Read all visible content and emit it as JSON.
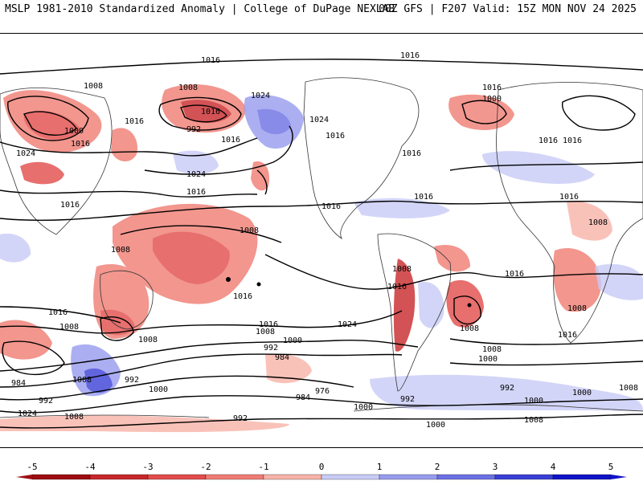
{
  "header": {
    "left_title": "MSLP 1981-2010 Standardized Anomaly | College of DuPage NEXLAB",
    "right_title": "00Z GFS | F207 Valid: 15Z MON NOV 24 2025"
  },
  "map": {
    "negative_color": "#e8524a",
    "positive_color": "#6a6ae8",
    "isobar_labels": [
      "1016",
      "1008",
      "1008",
      "1016",
      "1024",
      "1016",
      "1016",
      "1000",
      "1016",
      "1024",
      "1000",
      "1016",
      "992",
      "1024",
      "1016",
      "1024",
      "1016",
      "1016",
      "1016",
      "1016",
      "1016",
      "1016",
      "1008",
      "1008",
      "1008",
      "1008",
      "1016",
      "1016",
      "1016",
      "1016",
      "1016",
      "1016",
      "1008",
      "1024",
      "1008",
      "1016",
      "1008",
      "1008",
      "1008",
      "1016",
      "1016",
      "992",
      "1000",
      "984",
      "1008",
      "984",
      "992",
      "1008",
      "992",
      "1000",
      "976",
      "984",
      "992",
      "1008",
      "1000",
      "1000",
      "1000",
      "992",
      "1024",
      "1008",
      "1000",
      "992",
      "1008",
      "1000"
    ]
  },
  "colorbar": {
    "ticks": [
      "-5",
      "-4",
      "-3",
      "-2",
      "-1",
      "0",
      "1",
      "2",
      "3",
      "4",
      "5"
    ],
    "colors": [
      "#9e0d12",
      "#c8282b",
      "#e24c4a",
      "#ef7d73",
      "#f8b3a8",
      "#ffffff",
      "#c8cbf6",
      "#979cee",
      "#6b70e3",
      "#3a3fd6",
      "#1014c8"
    ]
  }
}
